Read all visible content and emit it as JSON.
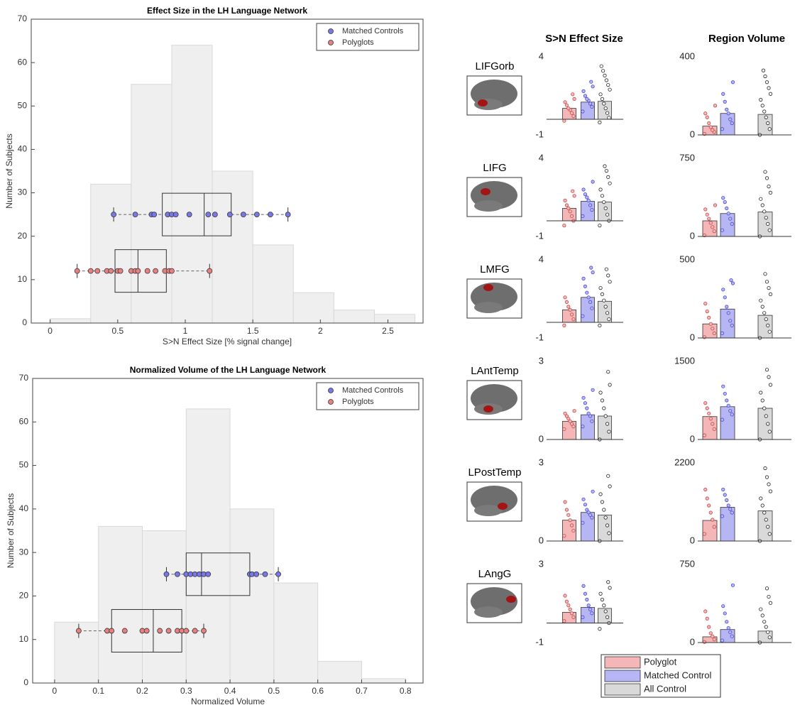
{
  "chart_data": [
    {
      "type": "histogram",
      "title": "Effect Size in the LH Language Network",
      "xlabel": "S>N Effect Size [% signal change]",
      "ylabel": "Number of Subjects",
      "bins": [
        0,
        0.3,
        0.6,
        0.9,
        1.2,
        1.5,
        1.8,
        2.1,
        2.4,
        2.7
      ],
      "counts": [
        1,
        32,
        55,
        64,
        35,
        18,
        7,
        3,
        2
      ],
      "hist_color": "#efefef",
      "xlim": [
        -0.14,
        2.76
      ],
      "xticks": [
        0,
        0.5,
        1,
        1.5,
        2,
        2.5
      ],
      "ylim": [
        0,
        70
      ],
      "yticks": [
        0,
        10,
        20,
        30,
        40,
        50,
        60,
        70
      ],
      "legend": "upper right",
      "groups": [
        {
          "name": "Matched Controls",
          "color": "#7878e8",
          "y": 25,
          "values": [
            0.47,
            0.63,
            0.75,
            0.77,
            0.87,
            0.9,
            0.93,
            1.03,
            1.17,
            1.22,
            1.33,
            1.43,
            1.53,
            1.63,
            1.76
          ],
          "box": {
            "whislo": 0.47,
            "q1": 0.83,
            "med": 1.14,
            "q3": 1.34,
            "whishi": 1.76
          }
        },
        {
          "name": "Polyglots",
          "color": "#e88080",
          "y": 12,
          "values": [
            0.2,
            0.3,
            0.35,
            0.42,
            0.45,
            0.5,
            0.52,
            0.6,
            0.63,
            0.65,
            0.72,
            0.78,
            0.85,
            0.88,
            0.9,
            1.18
          ],
          "box": {
            "whislo": 0.2,
            "q1": 0.48,
            "med": 0.65,
            "q3": 0.86,
            "whishi": 1.18
          }
        }
      ]
    },
    {
      "type": "histogram",
      "title": "Normalized Volume of the LH Language Network",
      "xlabel": "Normalized Volume",
      "ylabel": "Number of Subjects",
      "bins": [
        0,
        0.1,
        0.2,
        0.3,
        0.4,
        0.5,
        0.6,
        0.7,
        0.8
      ],
      "counts": [
        14,
        36,
        35,
        63,
        40,
        23,
        5,
        1
      ],
      "hist_color": "#efefef",
      "xlim": [
        -0.05,
        0.84
      ],
      "xticks": [
        0,
        0.1,
        0.2,
        0.3,
        0.4,
        0.5,
        0.6,
        0.7,
        0.8
      ],
      "ylim": [
        0,
        70
      ],
      "yticks": [
        0,
        10,
        20,
        30,
        40,
        50,
        60,
        70
      ],
      "legend": "upper right",
      "groups": [
        {
          "name": "Matched Controls",
          "color": "#7878e8",
          "y": 25,
          "values": [
            0.255,
            0.28,
            0.3,
            0.31,
            0.32,
            0.33,
            0.34,
            0.35,
            0.445,
            0.45,
            0.46,
            0.48,
            0.51
          ],
          "box": {
            "whislo": 0.255,
            "q1": 0.3,
            "med": 0.335,
            "q3": 0.445,
            "whishi": 0.51
          }
        },
        {
          "name": "Polyglots",
          "color": "#e88080",
          "y": 12,
          "values": [
            0.055,
            0.12,
            0.13,
            0.16,
            0.2,
            0.21,
            0.24,
            0.26,
            0.28,
            0.29,
            0.3,
            0.32,
            0.34
          ],
          "box": {
            "whislo": 0.055,
            "q1": 0.13,
            "med": 0.225,
            "q3": 0.29,
            "whishi": 0.34
          }
        }
      ]
    },
    {
      "type": "bar-panels",
      "columns": [
        "S>N Effect Size",
        "Region Volume"
      ],
      "legend": "bottom",
      "series": [
        {
          "name": "Polyglot",
          "color": "#f4b6b6",
          "dot_color": "#c24a4a"
        },
        {
          "name": "Matched Control",
          "color": "#b6b6f4",
          "dot_color": "#4a4ad0"
        },
        {
          "name": "All Control",
          "color": "#d9d9d9",
          "dot_color": "#222222"
        }
      ],
      "panels": [
        {
          "region": "LIFGorb",
          "charts": [
            {
              "ylim": [
                -1,
                4
              ],
              "yticks": [
                -1,
                4
              ],
              "values": [
                0.7,
                1.1,
                1.15
              ],
              "points": [
                [
                  -0.1,
                  0.2,
                  0.4,
                  0.6,
                  0.7,
                  0.9,
                  1.1,
                  1.3,
                  1.6
                ],
                [
                  0.5,
                  0.8,
                  1.0,
                  1.2,
                  1.3,
                  1.5,
                  1.8,
                  2.1,
                  2.4
                ],
                [
                  -0.2,
                  0.1,
                  0.4,
                  0.7,
                  1.0,
                  1.3,
                  1.6,
                  1.9,
                  2.2,
                  2.5,
                  2.8,
                  3.1,
                  3.4
                ]
              ]
            },
            {
              "ylim": [
                0,
                400
              ],
              "yticks": [
                0,
                400
              ],
              "values": [
                45,
                110,
                105
              ],
              "points": [
                [
                  5,
                  15,
                  25,
                  40,
                  60,
                  90,
                  110,
                  150
                ],
                [
                  30,
                  60,
                  80,
                  110,
                  130,
                  170,
                  210,
                  270
                ],
                [
                  0,
                  30,
                  60,
                  90,
                  120,
                  150,
                  180,
                  210,
                  240,
                  270,
                  300,
                  330
                ]
              ]
            }
          ]
        },
        {
          "region": "LIFG",
          "charts": [
            {
              "ylim": [
                -1,
                4
              ],
              "yticks": [
                -1,
                4
              ],
              "values": [
                0.8,
                1.25,
                1.2
              ],
              "points": [
                [
                  -0.3,
                  0,
                  0.3,
                  0.6,
                  0.8,
                  1.0,
                  1.3,
                  1.6,
                  1.9
                ],
                [
                  0.3,
                  0.7,
                  1.0,
                  1.3,
                  1.5,
                  1.7,
                  2.0,
                  2.5
                ],
                [
                  -0.3,
                  0,
                  0.4,
                  0.8,
                  1.2,
                  1.6,
                  2.0,
                  2.4,
                  2.8,
                  3.2,
                  3.5
                ]
              ]
            },
            {
              "ylim": [
                0,
                750
              ],
              "yticks": [
                0,
                750
              ],
              "values": [
                150,
                220,
                235
              ],
              "points": [
                [
                  10,
                  50,
                  90,
                  130,
                  170,
                  210,
                  260,
                  300
                ],
                [
                  60,
                  120,
                  170,
                  220,
                  270,
                  330,
                  370
                ],
                [
                  0,
                  60,
                  120,
                  180,
                  240,
                  300,
                  360,
                  420,
                  480,
                  560,
                  620
                ]
              ]
            }
          ]
        },
        {
          "region": "LMFG",
          "charts": [
            {
              "ylim": [
                -1,
                4
              ],
              "yticks": [
                -1,
                4
              ],
              "values": [
                0.8,
                1.6,
                1.35
              ],
              "points": [
                [
                  -0.2,
                  0.2,
                  0.5,
                  0.8,
                  1.0,
                  1.3,
                  1.6
                ],
                [
                  0.4,
                  0.9,
                  1.3,
                  1.6,
                  1.9,
                  2.3,
                  2.8,
                  3.2,
                  3.5
                ],
                [
                  -0.2,
                  0.2,
                  0.6,
                  1.0,
                  1.4,
                  1.8,
                  2.2,
                  2.6,
                  3.0,
                  3.4
                ]
              ]
            },
            {
              "ylim": [
                0,
                500
              ],
              "yticks": [
                0,
                500
              ],
              "values": [
                90,
                185,
                145
              ],
              "points": [
                [
                  5,
                  30,
                  60,
                  90,
                  130,
                  170,
                  220
                ],
                [
                  30,
                  80,
                  110,
                  160,
                  200,
                  260,
                  310,
                  350,
                  370
                ],
                [
                  0,
                  40,
                  80,
                  120,
                  160,
                  200,
                  240,
                  280,
                  320,
                  360,
                  410
                ]
              ]
            }
          ]
        },
        {
          "region": "LAntTemp",
          "charts": [
            {
              "ylim": [
                0,
                3
              ],
              "yticks": [
                0,
                3
              ],
              "values": [
                0.7,
                0.95,
                0.9
              ],
              "points": [
                [
                  0.4,
                  0.5,
                  0.6,
                  0.7,
                  0.8,
                  0.9,
                  1.0,
                  1.1
                ],
                [
                  0.5,
                  0.7,
                  0.9,
                  1.0,
                  1.2,
                  1.4,
                  1.6,
                  1.9
                ],
                [
                  0,
                  0.3,
                  0.6,
                  0.9,
                  1.2,
                  1.5,
                  1.8,
                  2.1,
                  2.6
                ]
              ]
            },
            {
              "ylim": [
                0,
                1500
              ],
              "yticks": [
                0,
                1500
              ],
              "values": [
                440,
                630,
                600
              ],
              "points": [
                [
                  80,
                  200,
                  300,
                  400,
                  500,
                  600,
                  700
                ],
                [
                  380,
                  480,
                  550,
                  650,
                  750,
                  880,
                  1020
                ],
                [
                  0,
                  150,
                  300,
                  450,
                  600,
                  750,
                  900,
                  1050,
                  1200,
                  1340
                ]
              ]
            }
          ]
        },
        {
          "region": "LPostTemp",
          "charts": [
            {
              "ylim": [
                0,
                3
              ],
              "yticks": [
                0,
                3
              ],
              "values": [
                0.8,
                1.1,
                1.0
              ],
              "points": [
                [
                  0.2,
                  0.4,
                  0.6,
                  0.8,
                  1.0,
                  1.2,
                  1.5
                ],
                [
                  0.7,
                  0.9,
                  1.0,
                  1.1,
                  1.2,
                  1.4,
                  1.6,
                  1.9
                ],
                [
                  0,
                  0.3,
                  0.6,
                  0.9,
                  1.2,
                  1.5,
                  1.8,
                  2.1,
                  2.5
                ]
              ]
            },
            {
              "ylim": [
                0,
                2200
              ],
              "yticks": [
                0,
                2200
              ],
              "values": [
                580,
                950,
                850
              ],
              "points": [
                [
                  200,
                  400,
                  600,
                  800,
                  1000,
                  1200,
                  1450
                ],
                [
                  700,
                  800,
                  900,
                  1000,
                  1150,
                  1300,
                  1450
                ],
                [
                  0,
                  200,
                  400,
                  600,
                  800,
                  1000,
                  1200,
                  1400,
                  1600,
                  1800,
                  2050
                ]
              ]
            }
          ]
        },
        {
          "region": "LAngG",
          "charts": [
            {
              "ylim": [
                -1,
                3
              ],
              "yticks": [
                -1,
                3
              ],
              "values": [
                0.55,
                0.8,
                0.75
              ],
              "points": [
                [
                  0.1,
                  0.3,
                  0.5,
                  0.7,
                  0.9,
                  1.1,
                  1.4
                ],
                [
                  0.3,
                  0.5,
                  0.7,
                  0.9,
                  1.2,
                  1.5,
                  1.9
                ],
                [
                  -0.3,
                  0,
                  0.3,
                  0.6,
                  0.9,
                  1.2,
                  1.5,
                  1.8,
                  2.1
                ]
              ]
            },
            {
              "ylim": [
                0,
                750
              ],
              "yticks": [
                0,
                750
              ],
              "values": [
                55,
                125,
                110
              ],
              "points": [
                [
                  5,
                  30,
                  60,
                  90,
                  150,
                  230,
                  300
                ],
                [
                  20,
                  60,
                  100,
                  140,
                  200,
                  280,
                  350,
                  550
                ],
                [
                  0,
                  50,
                  100,
                  150,
                  200,
                  260,
                  320,
                  380,
                  440,
                  520
                ]
              ]
            }
          ]
        }
      ]
    }
  ]
}
